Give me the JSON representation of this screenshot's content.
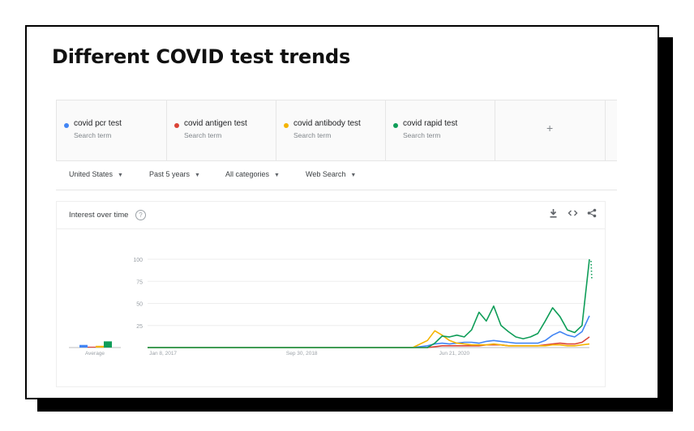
{
  "headline": "Different COVID test trends",
  "terms": [
    {
      "name": "covid pcr test",
      "sub": "Search term",
      "color": "#4285f4"
    },
    {
      "name": "covid antigen test",
      "sub": "Search term",
      "color": "#db4437"
    },
    {
      "name": "covid antibody test",
      "sub": "Search term",
      "color": "#f4b400"
    },
    {
      "name": "covid rapid test",
      "sub": "Search term",
      "color": "#0f9d58"
    }
  ],
  "add_term_label": "+",
  "filters": {
    "region": "United States",
    "period": "Past 5 years",
    "category": "All categories",
    "property": "Web Search"
  },
  "panel": {
    "title": "Interest over time",
    "help_label": "?",
    "download_icon": "download-icon",
    "embed_icon": "embed-icon",
    "share_icon": "share-icon"
  },
  "chart_data": {
    "type": "line",
    "ylim": [
      0,
      100
    ],
    "y_ticks": [
      "100",
      "75",
      "50",
      "25"
    ],
    "x_tick_labels": [
      "Jan 8, 2017",
      "Sep 30, 2018",
      "Jun 21, 2020"
    ],
    "average_label": "Average",
    "averages": [
      {
        "name": "covid pcr test",
        "value": 3
      },
      {
        "name": "covid antigen test",
        "value": 1
      },
      {
        "name": "covid antibody test",
        "value": 2
      },
      {
        "name": "covid rapid test",
        "value": 7
      }
    ],
    "x": [
      "2017-01",
      "2017-07",
      "2018-01",
      "2018-07",
      "2019-01",
      "2019-07",
      "2020-01",
      "2020-03",
      "2020-04",
      "2020-05",
      "2020-06",
      "2020-07",
      "2020-08",
      "2020-09",
      "2020-10",
      "2020-11",
      "2020-12",
      "2021-01",
      "2021-02",
      "2021-03",
      "2021-04",
      "2021-05",
      "2021-06",
      "2021-07",
      "2021-08",
      "2021-09",
      "2021-10",
      "2021-11",
      "2021-12",
      "2022-01"
    ],
    "series": [
      {
        "name": "covid pcr test",
        "color": "#4285f4",
        "values": [
          0,
          0,
          0,
          0,
          0,
          0,
          0,
          2,
          4,
          5,
          4,
          5,
          6,
          6,
          5,
          7,
          8,
          7,
          6,
          5,
          5,
          5,
          5,
          8,
          14,
          18,
          14,
          12,
          18,
          36
        ]
      },
      {
        "name": "covid antigen test",
        "color": "#db4437",
        "values": [
          0,
          0,
          0,
          0,
          0,
          0,
          0,
          0,
          1,
          2,
          2,
          2,
          2,
          2,
          2,
          3,
          3,
          3,
          2,
          2,
          2,
          2,
          2,
          3,
          4,
          5,
          4,
          4,
          6,
          12
        ]
      },
      {
        "name": "covid antibody test",
        "color": "#f4b400",
        "values": [
          0,
          0,
          0,
          0,
          0,
          0,
          0,
          8,
          19,
          14,
          8,
          5,
          4,
          3,
          3,
          3,
          4,
          3,
          2,
          2,
          2,
          2,
          2,
          2,
          3,
          3,
          2,
          2,
          3,
          4
        ]
      },
      {
        "name": "covid rapid test",
        "color": "#0f9d58",
        "values": [
          0,
          0,
          0,
          0,
          0,
          0,
          0,
          0,
          5,
          13,
          12,
          14,
          12,
          20,
          40,
          30,
          47,
          25,
          18,
          12,
          10,
          12,
          16,
          30,
          45,
          35,
          20,
          17,
          25,
          100
        ]
      }
    ]
  }
}
